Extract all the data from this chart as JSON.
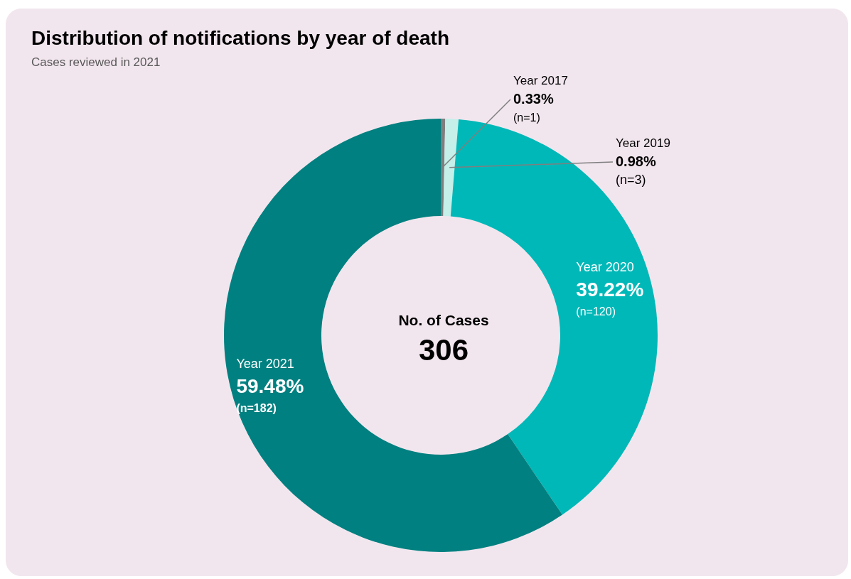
{
  "chart_data": {
    "type": "donut",
    "title": "Distribution of notifications by year of death",
    "subtitle": "Cases reviewed in 2021",
    "categories": [
      "Year 2017",
      "Year 2019",
      "Year 2020",
      "Year 2021"
    ],
    "values": [
      0.33,
      0.98,
      39.22,
      59.48
    ],
    "value_labels": [
      "0.33%",
      "0.98%",
      "39.22%",
      "59.48%"
    ],
    "colors": [
      "#7f7f7f",
      "#c5efe9",
      "#00b8b8",
      "#008080"
    ],
    "annotations": [
      "No. of Cases",
      "306",
      "(n=1)",
      "(n=3)",
      "(n=120)",
      "(n=182)"
    ]
  }
}
